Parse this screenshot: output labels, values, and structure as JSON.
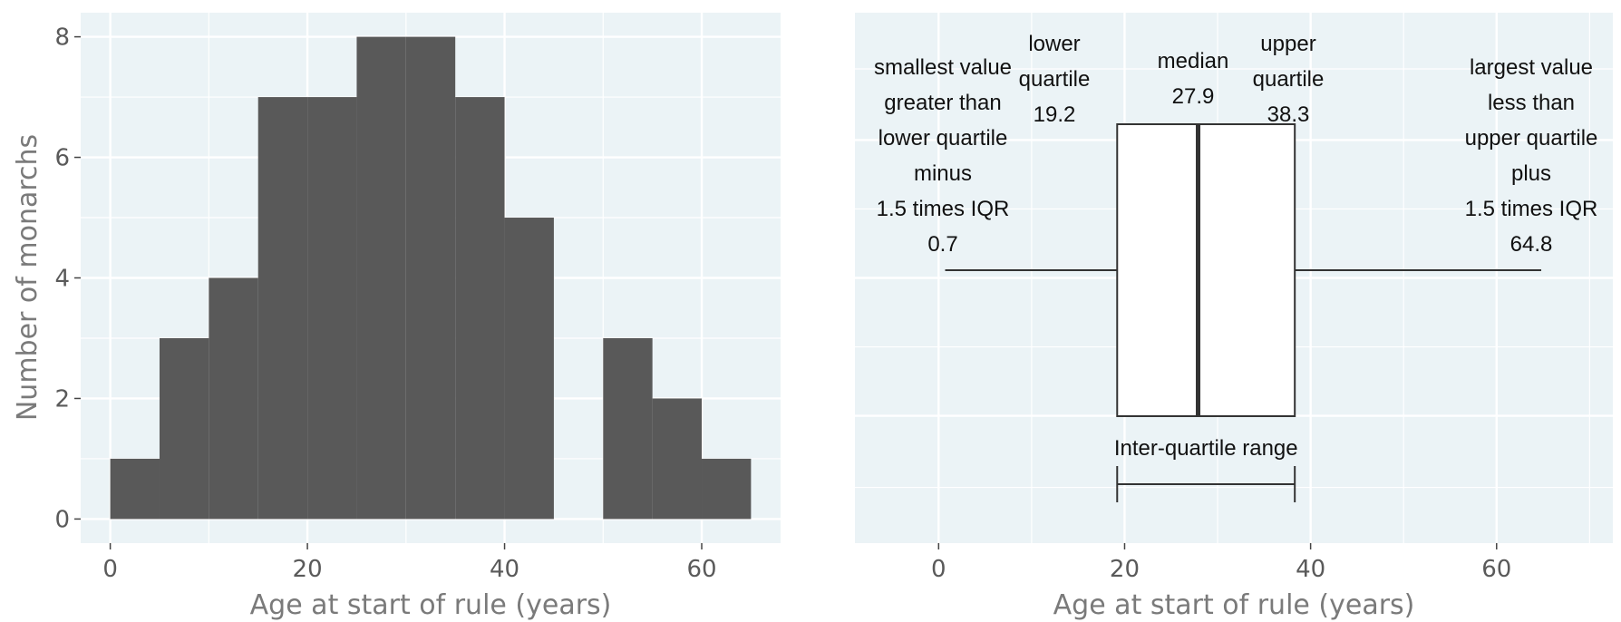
{
  "chart_data": [
    {
      "type": "bar",
      "xlabel": "Age at start of rule (years)",
      "ylabel": "Number of monarchs",
      "xlim": [
        -3,
        68
      ],
      "ylim": [
        -0.4,
        8.4
      ],
      "grid": true,
      "x_ticks": [
        {
          "value": 0,
          "label": "0"
        },
        {
          "value": 20,
          "label": "20"
        },
        {
          "value": 40,
          "label": "40"
        },
        {
          "value": 60,
          "label": "60"
        }
      ],
      "y_ticks": [
        {
          "value": 0,
          "label": "0"
        },
        {
          "value": 2,
          "label": "2"
        },
        {
          "value": 4,
          "label": "4"
        },
        {
          "value": 6,
          "label": "6"
        },
        {
          "value": 8,
          "label": "8"
        }
      ],
      "bin_width": 5,
      "bins": [
        {
          "start": 0,
          "end": 5,
          "count": 1
        },
        {
          "start": 5,
          "end": 10,
          "count": 3
        },
        {
          "start": 10,
          "end": 15,
          "count": 4
        },
        {
          "start": 15,
          "end": 20,
          "count": 7
        },
        {
          "start": 20,
          "end": 25,
          "count": 7
        },
        {
          "start": 25,
          "end": 30,
          "count": 8
        },
        {
          "start": 30,
          "end": 35,
          "count": 8
        },
        {
          "start": 35,
          "end": 40,
          "count": 7
        },
        {
          "start": 40,
          "end": 45,
          "count": 5
        },
        {
          "start": 45,
          "end": 50,
          "count": 0
        },
        {
          "start": 50,
          "end": 55,
          "count": 3
        },
        {
          "start": 55,
          "end": 60,
          "count": 2
        },
        {
          "start": 60,
          "end": 65,
          "count": 1
        }
      ],
      "colors": {
        "panel": "#ebf3f6",
        "bar": "#595959",
        "grid": "#ffffff"
      }
    },
    {
      "type": "box",
      "xlabel": "Age at start of rule (years)",
      "xlim": [
        -9,
        72.5
      ],
      "grid": true,
      "x_ticks": [
        {
          "value": 0,
          "label": "0"
        },
        {
          "value": 20,
          "label": "20"
        },
        {
          "value": 40,
          "label": "40"
        },
        {
          "value": 60,
          "label": "60"
        }
      ],
      "whisker_low": 0.7,
      "q1": 19.2,
      "median": 27.9,
      "q3": 38.3,
      "whisker_high": 64.8,
      "annotations": {
        "low_whisker": [
          "smallest value",
          "greater than",
          "lower quartile",
          "minus",
          "1.5 times IQR",
          "0.7"
        ],
        "q1": [
          "lower",
          "quartile",
          "19.2"
        ],
        "median": [
          "median",
          "27.9"
        ],
        "q3": [
          "upper",
          "quartile",
          "38.3"
        ],
        "high_whisker": [
          "largest value",
          "less than",
          "upper quartile",
          "plus",
          "1.5 times IQR",
          "64.8"
        ],
        "iqr_label": "Inter-quartile range"
      },
      "colors": {
        "panel": "#ebf3f6",
        "box_fill": "#ffffff",
        "line": "#333333"
      }
    }
  ]
}
